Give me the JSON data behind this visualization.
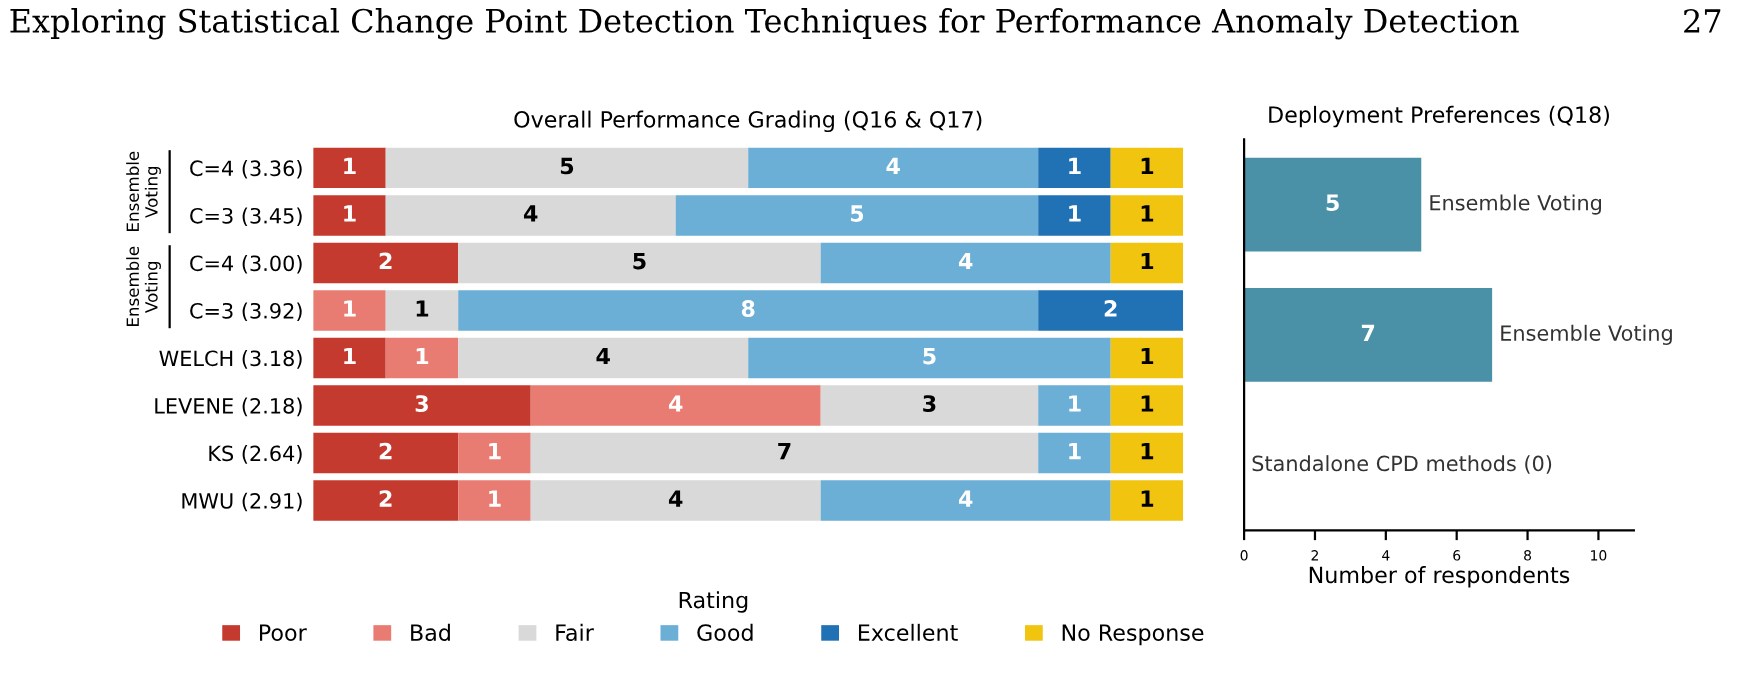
{
  "chart_data": [
    {
      "type": "bar",
      "orientation": "horizontal",
      "stacked": true,
      "title": "Overall Performance Grading (Q16 & Q17)",
      "categories": [
        "C=4 (3.36)",
        "C=3 (3.45)",
        "C=4 (3.00)",
        "C=3 (3.92)",
        "WELCH (3.18)",
        "LEVENE (2.18)",
        "KS (2.64)",
        "MWU (2.91)"
      ],
      "series": [
        {
          "name": "Poor",
          "color": "#c53a2e",
          "values": [
            1,
            1,
            2,
            0,
            1,
            3,
            2,
            2
          ],
          "value_labels": [
            "1",
            "1",
            "2",
            null,
            "1",
            "3",
            "2",
            "2"
          ]
        },
        {
          "name": "Bad",
          "color": "#e97c72",
          "values": [
            0,
            0,
            0,
            1,
            1,
            4,
            1,
            1
          ],
          "value_labels": [
            null,
            null,
            null,
            "1",
            "1",
            "4",
            "1",
            "1"
          ]
        },
        {
          "name": "Fair",
          "color": "#d9d9d9",
          "values": [
            5,
            4,
            5,
            1,
            4,
            3,
            7,
            4
          ],
          "value_labels": [
            "5",
            "4",
            "5",
            "1",
            "4",
            "3",
            "7",
            "4"
          ]
        },
        {
          "name": "Good",
          "color": "#6baed6",
          "values": [
            4,
            5,
            4,
            8,
            5,
            1,
            1,
            4
          ],
          "value_labels": [
            "4",
            "5",
            "4",
            "8",
            "5",
            "1",
            "1",
            "4"
          ]
        },
        {
          "name": "Excellent",
          "color": "#2171b5",
          "values": [
            1,
            1,
            0,
            2,
            0,
            0,
            0,
            0
          ],
          "value_labels": [
            "1",
            "1",
            null,
            "2",
            null,
            null,
            null,
            null
          ]
        },
        {
          "name": "No Response",
          "color": "#f1c40f",
          "values": [
            1,
            1,
            1,
            0,
            1,
            1,
            1,
            1
          ],
          "value_labels": [
            "1",
            "1",
            "1",
            null,
            "1",
            "1",
            "1",
            "1"
          ]
        }
      ],
      "legend": "bottom",
      "legend_title": "Rating",
      "grid": false,
      "annotations": [
        "Exploring Statistical Change Point Detection Techniques for Performance Anomaly Detection",
        "27",
        "Ensemble Voting",
        "Ensemble Voting"
      ]
    },
    {
      "type": "bar",
      "orientation": "horizontal",
      "title": "Deployment Preferences (Q18)",
      "xlabel": "Number of respondents",
      "categories": [
        "Ensemble Voting",
        "Ensemble Voting",
        "Standalone CPD methods (0)"
      ],
      "values": [
        5,
        7,
        0
      ],
      "value_labels": [
        "5",
        "7",
        null
      ],
      "color": "#4a91a8",
      "xlim": [
        0,
        11
      ],
      "xticks": [
        0,
        2,
        4,
        6,
        8,
        10
      ],
      "grid": false,
      "tick_labels": "x"
    }
  ]
}
